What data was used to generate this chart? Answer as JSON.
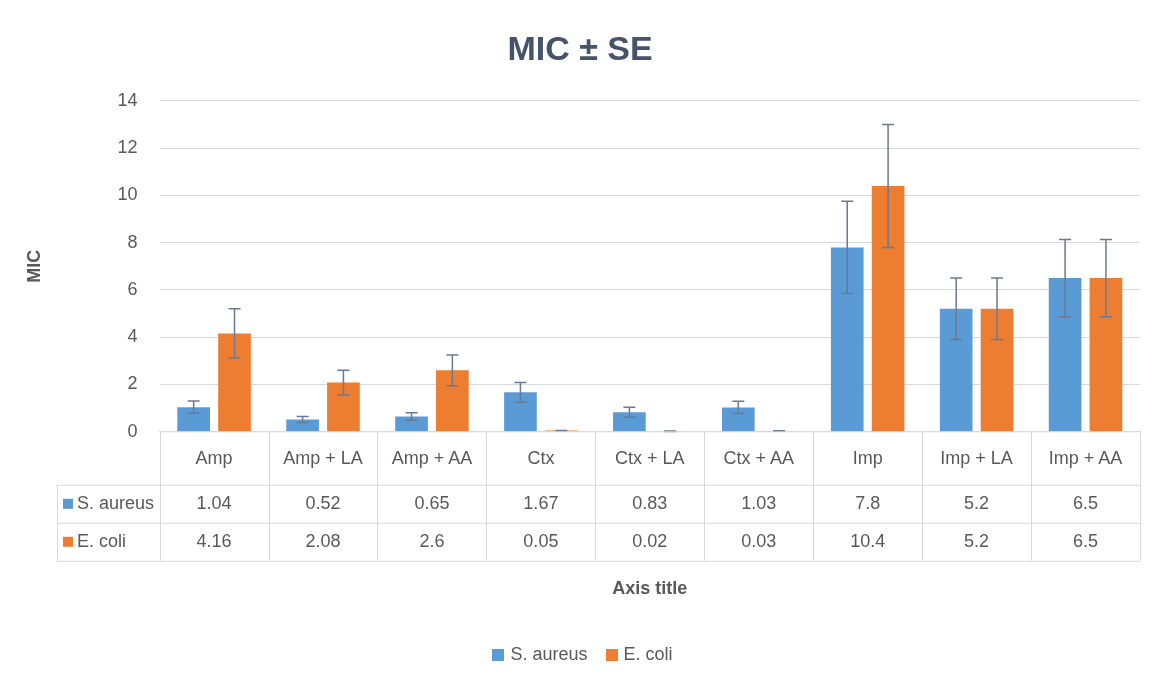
{
  "chart_data": {
    "type": "bar",
    "title": "MIC ± SE",
    "annotations": [
      "Axis title"
    ],
    "ylabel": "MIC",
    "categories": [
      "Amp",
      "Amp + LA",
      "Amp + AA",
      "Ctx",
      "Ctx + LA",
      "Ctx + AA",
      "Imp",
      "Imp + LA",
      "Imp + AA"
    ],
    "series": [
      {
        "name": "S. aureus",
        "color": "#5b9bd5",
        "values": [
          1.04,
          0.52,
          0.65,
          1.67,
          0.83,
          1.03,
          7.8,
          5.2,
          6.5
        ],
        "errors": [
          0.26,
          0.13,
          0.16,
          0.42,
          0.21,
          0.26,
          1.95,
          1.3,
          1.63
        ]
      },
      {
        "name": "E. coli",
        "color": "#ed7d31",
        "values": [
          4.16,
          2.08,
          2.6,
          0.05,
          0.02,
          0.03,
          10.4,
          5.2,
          6.5
        ],
        "errors": [
          1.04,
          0.52,
          0.65,
          0.01,
          0.01,
          0.01,
          2.6,
          1.3,
          1.63
        ]
      }
    ],
    "ylim": [
      0,
      14
    ],
    "yticks": [
      0,
      2,
      4,
      6,
      8,
      10,
      12,
      14
    ],
    "grid": "y",
    "legend": "bottom",
    "data_labels": true
  }
}
